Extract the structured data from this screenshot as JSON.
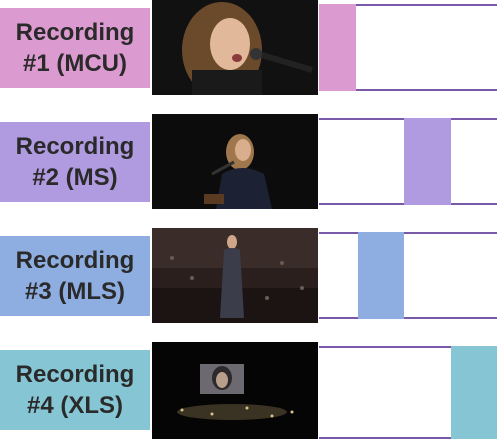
{
  "recordings": [
    {
      "label": "Recording\n#1 (MCU)",
      "color": "#dc9bd0",
      "segment_start": 0.0,
      "segment_end": 0.21
    },
    {
      "label": "Recording\n#2 (MS)",
      "color": "#b09ae0",
      "segment_start": 0.48,
      "segment_end": 0.74
    },
    {
      "label": "Recording\n#3 (MLS)",
      "color": "#8eaee2",
      "segment_start": 0.22,
      "segment_end": 0.48
    },
    {
      "label": "Recording\n#4 (XLS)",
      "color": "#86c6d4",
      "segment_start": 0.74,
      "segment_end": 1.0
    }
  ]
}
